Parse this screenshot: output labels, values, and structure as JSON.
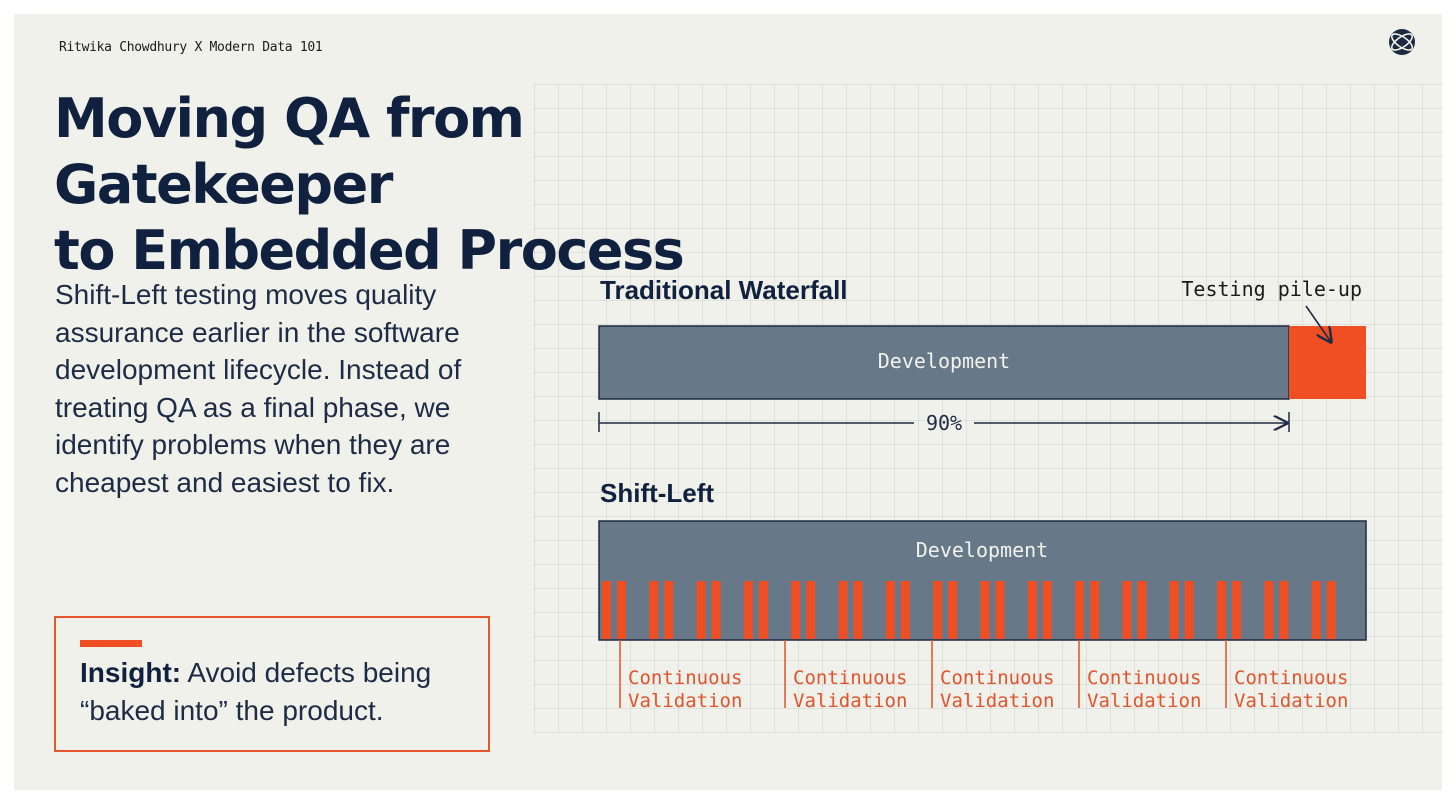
{
  "byline": "Ritwika Chowdhury X Modern Data 101",
  "logo_icon": "globe-icon",
  "title_line1": "Moving QA from Gatekeeper",
  "title_line2": "to Embedded Process",
  "body": "Shift-Left testing moves quality assurance earlier in the software development lifecycle. Instead of treating QA as a final phase, we identify problems when they are cheapest and easiest to fix.",
  "insight": {
    "label": "Insight:",
    "text": "Avoid defects being “baked into” the product."
  },
  "waterfall": {
    "title": "Traditional Waterfall",
    "dev_label": "Development",
    "pileup_label": "Testing pile-up",
    "dev_share": 0.9,
    "measure_label": "90%"
  },
  "shiftleft": {
    "title": "Shift-Left",
    "dev_label": "Development",
    "validation_labels": [
      "Continuous\nValidation",
      "Continuous\nValidation",
      "Continuous\nValidation",
      "Continuous\nValidation",
      "Continuous\nValidation"
    ]
  },
  "colors": {
    "navy": "#0f213e",
    "slate": "#677888",
    "orange": "#f04e23",
    "validation_text": "#e0532b"
  }
}
